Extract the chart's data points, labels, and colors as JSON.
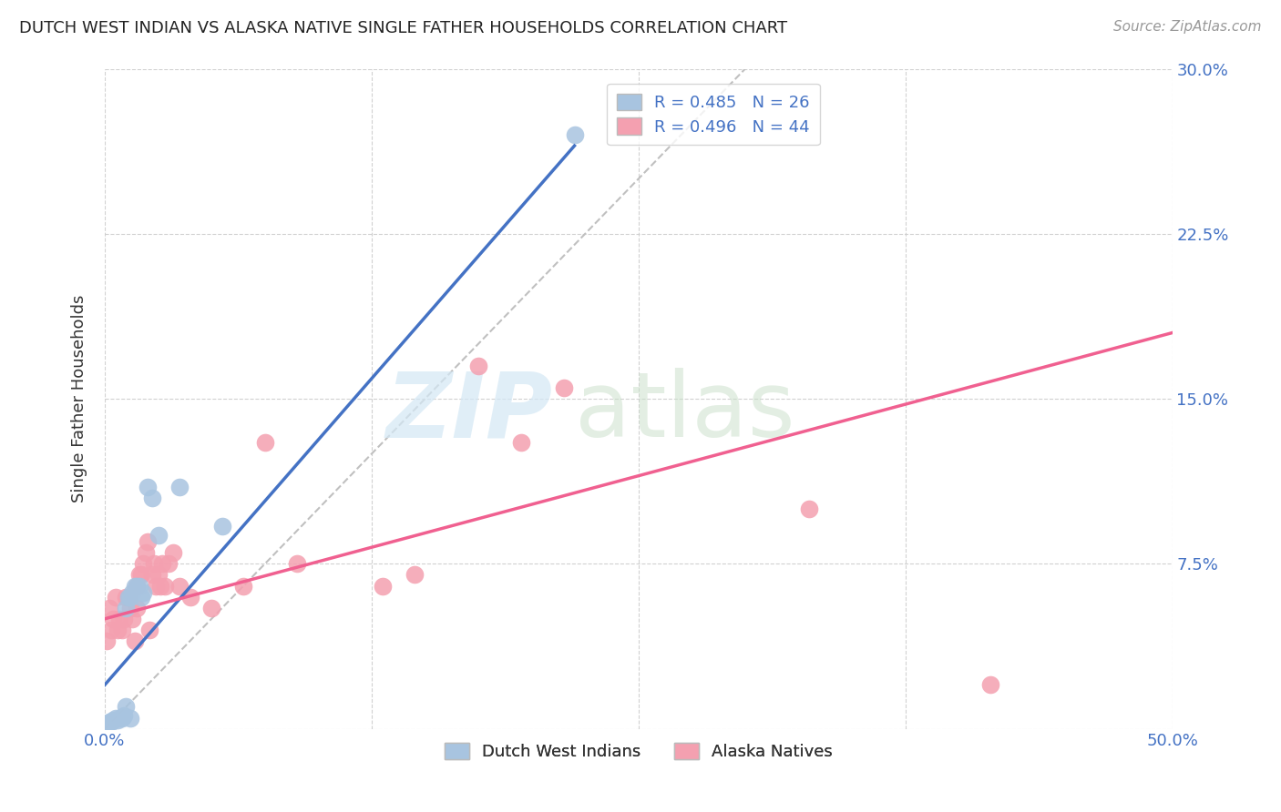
{
  "title": "DUTCH WEST INDIAN VS ALASKA NATIVE SINGLE FATHER HOUSEHOLDS CORRELATION CHART",
  "source": "Source: ZipAtlas.com",
  "ylabel": "Single Father Households",
  "xlim": [
    0.0,
    0.5
  ],
  "ylim": [
    0.0,
    0.3
  ],
  "xticks": [
    0.0,
    0.125,
    0.25,
    0.375,
    0.5
  ],
  "xticklabels": [
    "0.0%",
    "",
    "",
    "",
    "50.0%"
  ],
  "yticks": [
    0.0,
    0.075,
    0.15,
    0.225,
    0.3
  ],
  "yticklabels": [
    "",
    "7.5%",
    "15.0%",
    "22.5%",
    "30.0%"
  ],
  "grid_color": "#cccccc",
  "background_color": "#ffffff",
  "color_blue": "#a8c4e0",
  "color_pink": "#f4a0b0",
  "line_color_blue": "#4472c4",
  "line_color_pink": "#f06090",
  "diag_color": "#c0c0c0",
  "dutch_west_indians_x": [
    0.001,
    0.002,
    0.003,
    0.004,
    0.005,
    0.006,
    0.007,
    0.008,
    0.009,
    0.01,
    0.01,
    0.011,
    0.012,
    0.012,
    0.013,
    0.014,
    0.015,
    0.016,
    0.017,
    0.018,
    0.02,
    0.022,
    0.025,
    0.035,
    0.055,
    0.22
  ],
  "dutch_west_indians_y": [
    0.002,
    0.003,
    0.003,
    0.004,
    0.005,
    0.004,
    0.005,
    0.005,
    0.006,
    0.01,
    0.055,
    0.06,
    0.06,
    0.005,
    0.062,
    0.065,
    0.065,
    0.065,
    0.06,
    0.062,
    0.11,
    0.105,
    0.088,
    0.11,
    0.092,
    0.27
  ],
  "alaska_natives_x": [
    0.001,
    0.002,
    0.003,
    0.004,
    0.005,
    0.006,
    0.007,
    0.008,
    0.009,
    0.01,
    0.011,
    0.012,
    0.013,
    0.014,
    0.015,
    0.015,
    0.016,
    0.017,
    0.018,
    0.019,
    0.02,
    0.021,
    0.022,
    0.023,
    0.024,
    0.025,
    0.026,
    0.027,
    0.028,
    0.03,
    0.032,
    0.035,
    0.04,
    0.05,
    0.065,
    0.075,
    0.09,
    0.13,
    0.145,
    0.175,
    0.195,
    0.215,
    0.33,
    0.415
  ],
  "alaska_natives_y": [
    0.04,
    0.055,
    0.045,
    0.05,
    0.06,
    0.045,
    0.05,
    0.045,
    0.05,
    0.06,
    0.06,
    0.055,
    0.05,
    0.04,
    0.065,
    0.055,
    0.07,
    0.07,
    0.075,
    0.08,
    0.085,
    0.045,
    0.07,
    0.075,
    0.065,
    0.07,
    0.065,
    0.075,
    0.065,
    0.075,
    0.08,
    0.065,
    0.06,
    0.055,
    0.065,
    0.13,
    0.075,
    0.065,
    0.07,
    0.165,
    0.13,
    0.155,
    0.1,
    0.02
  ],
  "dwi_line_x0": 0.0,
  "dwi_line_y0": 0.02,
  "dwi_line_x1": 0.22,
  "dwi_line_y1": 0.265,
  "ak_line_x0": 0.0,
  "ak_line_y0": 0.05,
  "ak_line_x1": 0.5,
  "ak_line_y1": 0.18,
  "legend_items": [
    {
      "label": "R = 0.485   N = 26",
      "color": "#a8c4e0"
    },
    {
      "label": "R = 0.496   N = 44",
      "color": "#f4a0b0"
    }
  ],
  "bottom_legend": [
    {
      "label": "Dutch West Indians",
      "color": "#a8c4e0"
    },
    {
      "label": "Alaska Natives",
      "color": "#f4a0b0"
    }
  ]
}
